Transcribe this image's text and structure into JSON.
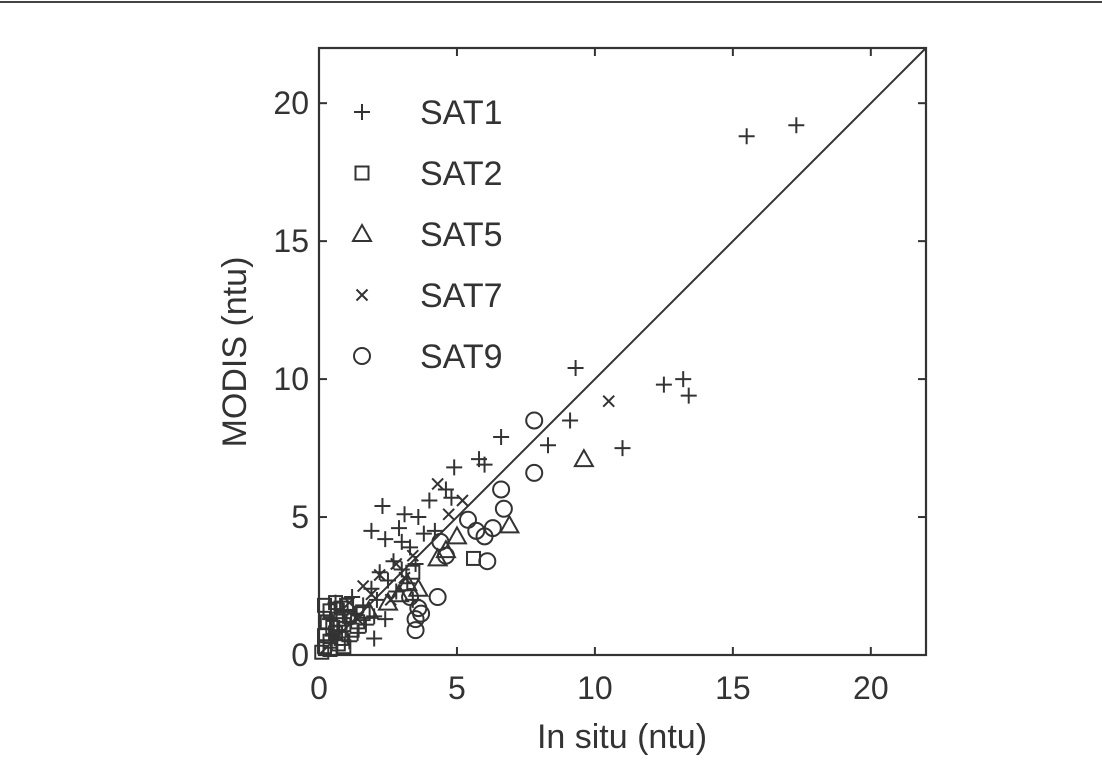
{
  "chart_data": {
    "type": "scatter",
    "xlabel": "In situ (ntu)",
    "ylabel": "MODIS (ntu)",
    "xlim": [
      0,
      22
    ],
    "ylim": [
      0,
      22
    ],
    "xticks": [
      0,
      5,
      10,
      15,
      20
    ],
    "yticks": [
      0,
      5,
      10,
      15,
      20
    ],
    "grid": false,
    "legend_position": "top-left",
    "reference_line": {
      "type": "1:1",
      "from": [
        0,
        0
      ],
      "to": [
        22,
        22
      ]
    },
    "colors": {
      "marker": "#333333",
      "axis": "#333333",
      "background": "#ffffff"
    },
    "series": [
      {
        "name": "SAT1",
        "marker": "plus",
        "points": [
          [
            15.5,
            18.8
          ],
          [
            17.3,
            19.2
          ],
          [
            9.3,
            10.4
          ],
          [
            12.5,
            9.8
          ],
          [
            13.2,
            10.0
          ],
          [
            13.4,
            9.4
          ],
          [
            9.1,
            8.5
          ],
          [
            11.0,
            7.5
          ],
          [
            8.3,
            7.6
          ],
          [
            6.6,
            7.9
          ],
          [
            5.8,
            7.1
          ],
          [
            6.0,
            6.9
          ],
          [
            4.9,
            6.8
          ],
          [
            4.6,
            6.0
          ],
          [
            4.8,
            5.7
          ],
          [
            4.0,
            5.6
          ],
          [
            2.3,
            5.4
          ],
          [
            3.1,
            5.1
          ],
          [
            3.6,
            5.0
          ],
          [
            2.9,
            4.6
          ],
          [
            1.9,
            4.5
          ],
          [
            3.8,
            4.4
          ],
          [
            4.2,
            4.5
          ],
          [
            3.0,
            4.1
          ],
          [
            2.4,
            4.2
          ],
          [
            3.3,
            3.9
          ],
          [
            2.7,
            3.4
          ],
          [
            3.5,
            3.3
          ],
          [
            2.2,
            3.0
          ],
          [
            3.0,
            3.1
          ],
          [
            2.5,
            2.7
          ],
          [
            3.2,
            2.6
          ],
          [
            1.9,
            2.4
          ],
          [
            2.8,
            2.3
          ],
          [
            2.1,
            2.0
          ],
          [
            1.6,
            1.8
          ],
          [
            3.4,
            2.0
          ],
          [
            1.3,
            1.5
          ],
          [
            2.0,
            1.4
          ],
          [
            1.0,
            1.2
          ],
          [
            1.7,
            1.1
          ],
          [
            2.4,
            1.3
          ],
          [
            0.7,
            0.9
          ],
          [
            1.4,
            0.8
          ],
          [
            2.0,
            0.6
          ],
          [
            1.1,
            0.5
          ],
          [
            0.9,
            1.6
          ],
          [
            0.6,
            1.9
          ],
          [
            0.4,
            1.3
          ],
          [
            1.2,
            2.1
          ],
          [
            0.5,
            0.7
          ]
        ]
      },
      {
        "name": "SAT2",
        "marker": "square",
        "points": [
          [
            5.6,
            3.5
          ],
          [
            3.4,
            3.0
          ],
          [
            0.2,
            1.8
          ],
          [
            0.4,
            1.6
          ],
          [
            0.6,
            1.9
          ],
          [
            0.8,
            1.7
          ],
          [
            1.0,
            1.8
          ],
          [
            0.3,
            1.2
          ],
          [
            0.5,
            1.0
          ],
          [
            0.7,
            1.3
          ],
          [
            0.9,
            1.1
          ],
          [
            1.1,
            1.4
          ],
          [
            0.2,
            0.7
          ],
          [
            0.4,
            0.5
          ],
          [
            0.6,
            0.8
          ],
          [
            0.8,
            0.6
          ],
          [
            1.2,
            0.9
          ],
          [
            0.2,
            0.3
          ],
          [
            0.4,
            0.2
          ],
          [
            0.7,
            0.4
          ],
          [
            0.1,
            0.1
          ],
          [
            0.9,
            0.3
          ],
          [
            1.4,
            1.2
          ],
          [
            1.6,
            1.5
          ]
        ]
      },
      {
        "name": "SAT5",
        "marker": "triangle",
        "points": [
          [
            9.6,
            7.1
          ],
          [
            6.9,
            4.7
          ],
          [
            4.3,
            3.5
          ],
          [
            4.6,
            3.8
          ],
          [
            5.0,
            4.3
          ],
          [
            3.2,
            2.6
          ],
          [
            2.9,
            2.2
          ],
          [
            2.5,
            1.9
          ],
          [
            3.6,
            2.4
          ],
          [
            1.8,
            1.6
          ]
        ]
      },
      {
        "name": "SAT7",
        "marker": "x",
        "points": [
          [
            10.5,
            9.2
          ],
          [
            4.3,
            6.2
          ],
          [
            5.2,
            5.6
          ],
          [
            4.7,
            5.1
          ],
          [
            2.2,
            2.9
          ],
          [
            2.8,
            3.3
          ],
          [
            3.1,
            2.8
          ],
          [
            1.6,
            2.5
          ],
          [
            3.4,
            3.6
          ],
          [
            1.1,
            1.9
          ],
          [
            1.9,
            2.2
          ],
          [
            1.4,
            1.3
          ],
          [
            2.6,
            2.0
          ]
        ]
      },
      {
        "name": "SAT9",
        "marker": "circle",
        "points": [
          [
            7.8,
            8.5
          ],
          [
            7.8,
            6.6
          ],
          [
            6.6,
            6.0
          ],
          [
            6.7,
            5.3
          ],
          [
            5.7,
            4.5
          ],
          [
            6.0,
            4.3
          ],
          [
            6.3,
            4.6
          ],
          [
            5.4,
            4.9
          ],
          [
            6.1,
            3.4
          ],
          [
            4.4,
            4.1
          ],
          [
            4.6,
            3.6
          ],
          [
            4.3,
            2.1
          ],
          [
            3.5,
            0.9
          ],
          [
            3.5,
            1.3
          ],
          [
            3.6,
            1.7
          ],
          [
            3.3,
            2.1
          ],
          [
            3.7,
            1.5
          ]
        ]
      }
    ]
  }
}
